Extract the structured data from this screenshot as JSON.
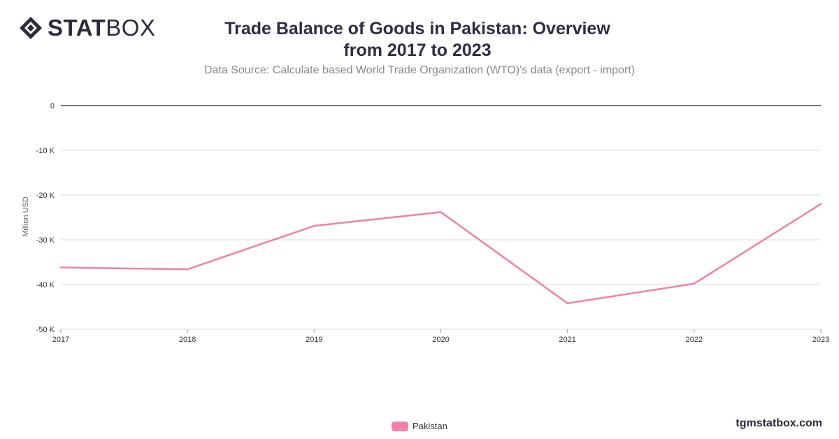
{
  "logo": {
    "bold": "STAT",
    "light": "BOX"
  },
  "title": "Trade Balance of Goods in Pakistan: Overview from 2017 to 2023",
  "subtitle": "Data Source: Calculate based World Trade Organization (WTO)'s data (export - import)",
  "watermark": "tgmstatbox.com",
  "colors": {
    "line": "#f17fab",
    "grid": "#dcdcdc",
    "zero": "#222222",
    "text": "#333333"
  },
  "chart_data": {
    "type": "line",
    "title": "Trade Balance of Goods in Pakistan: Overview from 2017 to 2023",
    "subtitle": "Data Source: Calculate based World Trade Organization (WTO)'s data (export - import)",
    "xlabel": "",
    "ylabel": "Million USD",
    "x": [
      "2017",
      "2018",
      "2019",
      "2020",
      "2021",
      "2022",
      "2023"
    ],
    "series": [
      {
        "name": "Pakistan",
        "values": [
          -36200,
          -36600,
          -26900,
          -23800,
          -44200,
          -39800,
          -22000
        ]
      }
    ],
    "ylim": [
      -50000,
      0
    ],
    "yticks": [
      0,
      -10000,
      -20000,
      -30000,
      -40000,
      -50000
    ],
    "ytick_labels": [
      "0",
      "-10 K",
      "-20 K",
      "-30 K",
      "-40 K",
      "-50 K"
    ],
    "grid": true,
    "legend": "bottom-center"
  }
}
